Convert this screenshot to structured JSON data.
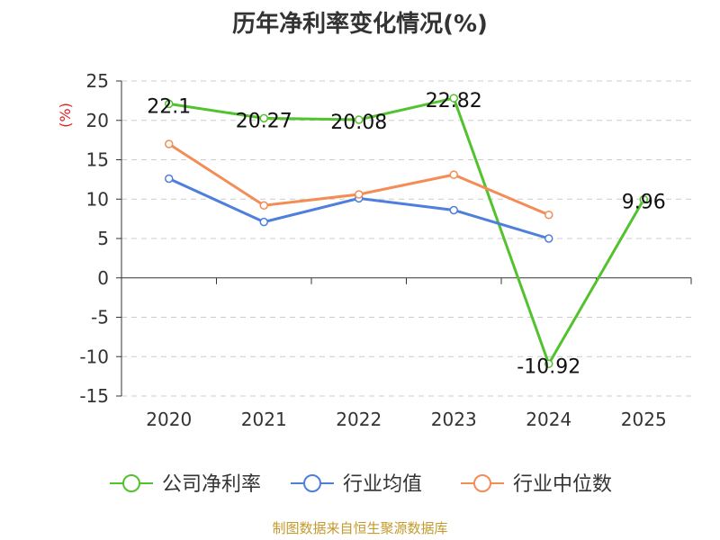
{
  "chart_data": {
    "type": "line",
    "title": "历年净利率变化情况(%)",
    "ylabel": "(%)",
    "xlabel": "",
    "categories": [
      "2020",
      "2021",
      "2022",
      "2023",
      "2024",
      "2025"
    ],
    "ylim": [
      -15,
      25
    ],
    "yticks": [
      25,
      20,
      15,
      10,
      5,
      0,
      -5,
      -10,
      -15
    ],
    "grid": true,
    "legend_position": "bottom",
    "series": [
      {
        "name": "公司净利率",
        "color": "#52c22e",
        "values": [
          22.1,
          20.27,
          20.08,
          22.82,
          -10.92,
          9.96
        ],
        "labels": [
          "22.1",
          "20.27",
          "20.08",
          "22.82",
          "-10.92",
          "9.96"
        ]
      },
      {
        "name": "行业均值",
        "color": "#4e7fdc",
        "values": [
          12.6,
          7.1,
          10.1,
          8.6,
          5.0,
          null
        ]
      },
      {
        "name": "行业中位数",
        "color": "#f48c56",
        "values": [
          17.0,
          9.2,
          10.6,
          13.1,
          8.0,
          null
        ]
      }
    ]
  },
  "footer": "制图数据来自恒生聚源数据库"
}
